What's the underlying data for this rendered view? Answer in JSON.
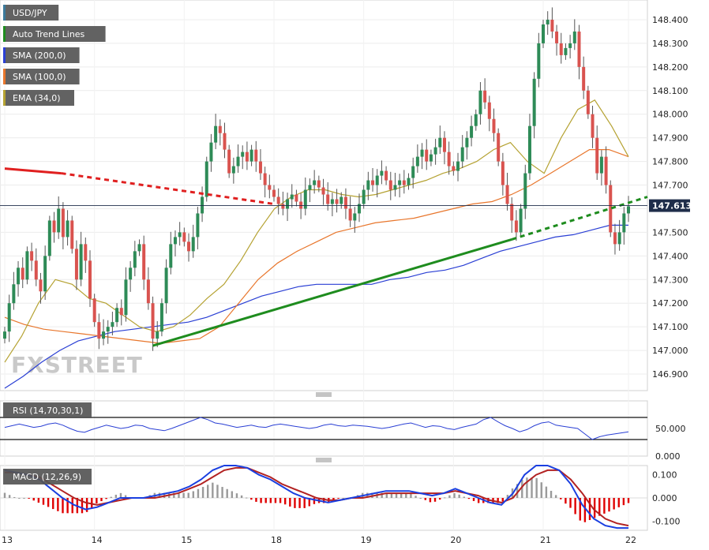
{
  "legend": [
    {
      "label": "USD/JPY",
      "color": "#3b7a9c"
    },
    {
      "label": "Auto Trend Lines",
      "color": "#1e8c1e"
    },
    {
      "label": "SMA (200,0)",
      "color": "#2a3fd4"
    },
    {
      "label": "SMA (100,0)",
      "color": "#e8762c"
    },
    {
      "label": "EMA (34,0)",
      "color": "#b5a232"
    }
  ],
  "last_price": "147.613",
  "watermark": "FXSTREET",
  "rsi_label": "RSI (14,70,30,1)",
  "macd_label": "MACD (12,26,9)",
  "chart_data": [
    {
      "type": "candlestick",
      "y_ticks": [
        "146.900",
        "147.000",
        "147.100",
        "147.200",
        "147.300",
        "147.400",
        "147.500",
        "147.600",
        "147.700",
        "147.800",
        "147.900",
        "148.000",
        "148.100",
        "148.200",
        "148.300",
        "148.400"
      ],
      "ylim": [
        146.83,
        148.45
      ],
      "x_ticks": [
        "13",
        "14",
        "15",
        "18",
        "19",
        "20",
        "21",
        "22"
      ],
      "x_tick_index": [
        0,
        20,
        40,
        60,
        80,
        100,
        120,
        140
      ],
      "bars": 140,
      "candle_closes": [
        147.08,
        147.2,
        147.28,
        147.35,
        147.3,
        147.42,
        147.38,
        147.3,
        147.25,
        147.4,
        147.55,
        147.5,
        147.6,
        147.48,
        147.55,
        147.43,
        147.3,
        147.45,
        147.38,
        147.22,
        147.12,
        147.05,
        147.08,
        147.1,
        147.12,
        147.18,
        147.15,
        147.3,
        147.35,
        147.42,
        147.45,
        147.3,
        147.2,
        147.05,
        147.08,
        147.2,
        147.35,
        147.45,
        147.48,
        147.5,
        147.46,
        147.42,
        147.48,
        147.58,
        147.65,
        147.8,
        147.88,
        147.95,
        147.92,
        147.85,
        147.75,
        147.78,
        147.82,
        147.84,
        147.8,
        147.85,
        147.8,
        147.75,
        147.7,
        147.68,
        147.65,
        147.62,
        147.6,
        147.64,
        147.66,
        147.63,
        147.6,
        147.68,
        147.7,
        147.72,
        147.69,
        147.66,
        147.62,
        147.64,
        147.62,
        147.65,
        147.6,
        147.55,
        147.58,
        147.62,
        147.68,
        147.72,
        147.7,
        147.74,
        147.76,
        147.72,
        147.68,
        147.7,
        147.72,
        147.7,
        147.73,
        147.78,
        147.82,
        147.85,
        147.8,
        147.83,
        147.86,
        147.9,
        147.84,
        147.78,
        147.76,
        147.8,
        147.86,
        147.9,
        147.95,
        148.0,
        148.1,
        148.05,
        147.98,
        147.92,
        147.8,
        147.7,
        147.62,
        147.55,
        147.5,
        147.6,
        147.75,
        147.95,
        148.15,
        148.3,
        148.38,
        148.4,
        148.35,
        148.3,
        148.25,
        148.28,
        148.3,
        148.35,
        148.2,
        148.1,
        148.0,
        147.9,
        147.75,
        147.82,
        147.7,
        147.5,
        147.45,
        147.5,
        147.58,
        147.61
      ],
      "sma200": [
        146.84,
        146.89,
        146.95,
        147.0,
        147.04,
        147.06,
        147.08,
        147.09,
        147.1,
        147.11,
        147.12,
        147.14,
        147.17,
        147.2,
        147.23,
        147.25,
        147.27,
        147.28,
        147.28,
        147.28,
        147.28,
        147.3,
        147.31,
        147.33,
        147.34,
        147.36,
        147.39,
        147.42,
        147.44,
        147.46,
        147.48,
        147.49,
        147.51,
        147.53,
        147.53
      ],
      "sma100": [
        147.14,
        147.11,
        147.09,
        147.08,
        147.07,
        147.06,
        147.05,
        147.04,
        147.03,
        147.04,
        147.05,
        147.1,
        147.2,
        147.3,
        147.37,
        147.42,
        147.46,
        147.5,
        147.52,
        147.54,
        147.55,
        147.56,
        147.58,
        147.6,
        147.62,
        147.63,
        147.66,
        147.7,
        147.75,
        147.8,
        147.85,
        147.85,
        147.82
      ],
      "ema34": [
        146.95,
        147.06,
        147.2,
        147.3,
        147.28,
        147.22,
        147.2,
        147.15,
        147.1,
        147.08,
        147.1,
        147.15,
        147.22,
        147.28,
        147.38,
        147.5,
        147.6,
        147.65,
        147.68,
        147.68,
        147.66,
        147.65,
        147.66,
        147.68,
        147.7,
        147.72,
        147.75,
        147.77,
        147.8,
        147.85,
        147.88,
        147.8,
        147.75,
        147.9,
        148.02,
        148.06,
        147.95,
        147.82
      ],
      "trend_resistance": [
        [
          147.75,
          147.62
        ]
      ],
      "trend_support": [
        [
          147.02,
          147.47,
          147.65
        ]
      ]
    },
    {
      "type": "line",
      "title": "RSI (14,70,30,1)",
      "y_ticks": [
        "0.000",
        "50.000"
      ],
      "ylim": [
        0,
        100
      ],
      "values": [
        52,
        55,
        58,
        55,
        52,
        54,
        58,
        60,
        56,
        50,
        45,
        43,
        48,
        52,
        56,
        53,
        50,
        52,
        56,
        55,
        50,
        48,
        46,
        50,
        55,
        60,
        65,
        70,
        66,
        60,
        58,
        55,
        52,
        54,
        56,
        53,
        52,
        56,
        58,
        56,
        54,
        52,
        50,
        52,
        56,
        58,
        55,
        54,
        56,
        55,
        54,
        52,
        50,
        52,
        55,
        58,
        60,
        56,
        52,
        55,
        54,
        50,
        48,
        52,
        55,
        58,
        66,
        70,
        62,
        55,
        50,
        44,
        48,
        55,
        60,
        62,
        56,
        54,
        52,
        50,
        40,
        30,
        35,
        38,
        40,
        42,
        44
      ]
    },
    {
      "type": "bar",
      "title": "MACD (12,26,9)",
      "y_ticks": [
        "0.100",
        "0.000",
        "-0.100"
      ],
      "ylim": [
        -0.14,
        0.14
      ],
      "macd": [
        0.12,
        0.11,
        0.1,
        0.08,
        0.04,
        0.0,
        -0.03,
        -0.05,
        -0.04,
        -0.02,
        0.0,
        0.0,
        0.0,
        0.01,
        0.02,
        0.03,
        0.05,
        0.08,
        0.12,
        0.14,
        0.14,
        0.13,
        0.1,
        0.08,
        0.05,
        0.02,
        0.0,
        -0.01,
        -0.02,
        -0.01,
        0.0,
        0.01,
        0.02,
        0.03,
        0.03,
        0.03,
        0.02,
        0.01,
        0.02,
        0.04,
        0.02,
        0.0,
        -0.02,
        -0.03,
        0.02,
        0.1,
        0.14,
        0.14,
        0.12,
        0.06,
        -0.03,
        -0.09,
        -0.12,
        -0.13,
        -0.13
      ],
      "signal": [
        0.11,
        0.11,
        0.1,
        0.09,
        0.06,
        0.03,
        0.0,
        -0.02,
        -0.03,
        -0.02,
        -0.01,
        0.0,
        0.0,
        0.0,
        0.01,
        0.02,
        0.04,
        0.06,
        0.09,
        0.12,
        0.13,
        0.13,
        0.11,
        0.09,
        0.06,
        0.04,
        0.02,
        0.0,
        -0.01,
        -0.01,
        0.0,
        0.0,
        0.01,
        0.02,
        0.02,
        0.02,
        0.02,
        0.02,
        0.02,
        0.03,
        0.02,
        0.01,
        -0.01,
        -0.02,
        0.0,
        0.06,
        0.1,
        0.12,
        0.12,
        0.08,
        0.02,
        -0.05,
        -0.09,
        -0.11,
        -0.12
      ]
    }
  ]
}
